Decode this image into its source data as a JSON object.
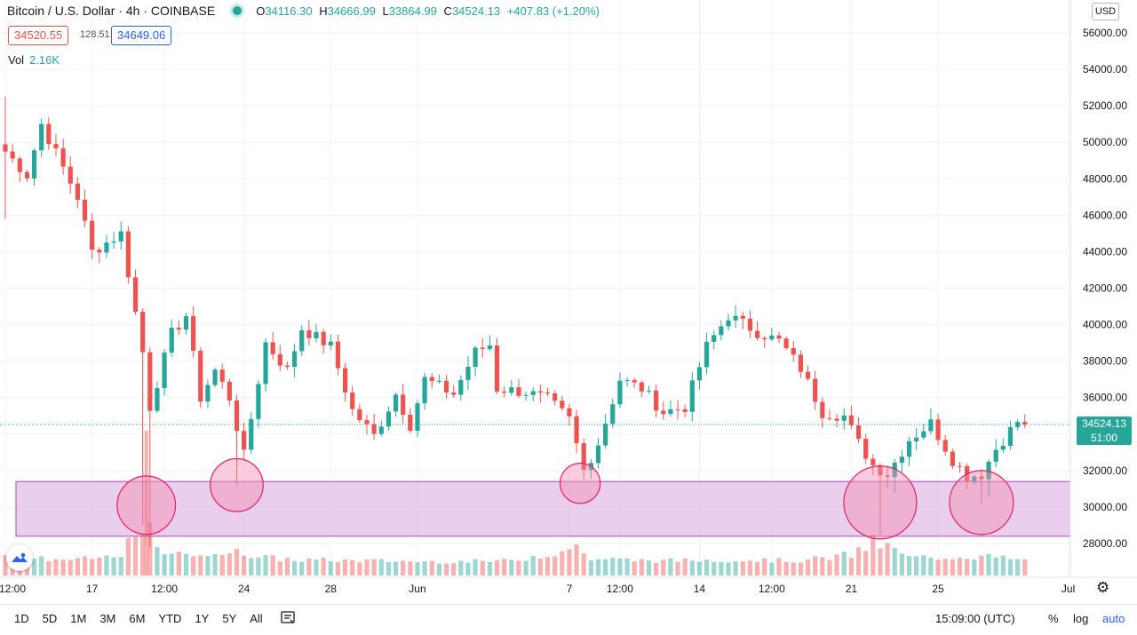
{
  "legend": {
    "symbol": "Bitcoin / U.S. Dollar · 4h · COINBASE",
    "open_label": "O",
    "open": "34116.30",
    "high_label": "H",
    "high": "34666.99",
    "low_label": "L",
    "low": "33864.99",
    "close_label": "C",
    "close": "34524.13",
    "change": "+407.83 (+1.20%)",
    "status_color": "#26a69a"
  },
  "quote": {
    "bid": "34520.55",
    "spread": "128.51",
    "ask": "34649.06"
  },
  "volume": {
    "label": "Vol",
    "value": "2.16K"
  },
  "currency": "USD",
  "last_price": {
    "price": "34524.13",
    "countdown": "51:00"
  },
  "bottom_bar": {
    "ranges": [
      "1D",
      "5D",
      "1M",
      "3M",
      "6M",
      "YTD",
      "1Y",
      "5Y",
      "All"
    ],
    "compare_icon": "compare-icon",
    "time": "15:09:00 (UTC)",
    "percent": "%",
    "log": "log",
    "auto": "auto"
  },
  "settings_icon": "gear-icon",
  "logo_icon": "tradingview-logo-icon",
  "chart_data": {
    "type": "candlestick",
    "interval": "4h",
    "up_color": "#26a69a",
    "down_color": "#ef5350",
    "zone_color": "#e1bee7",
    "highlight_color": "#f48fb1",
    "ylim": [
      26500,
      57500
    ],
    "y_ticks": [
      28000,
      30000,
      32000,
      34000,
      36000,
      38000,
      40000,
      42000,
      44000,
      46000,
      48000,
      50000,
      52000,
      54000,
      56000
    ],
    "y_tick_labels": [
      "28000.00",
      "30000.00",
      "32000.00",
      "34000.00",
      "36000.00",
      "38000.00",
      "40000.00",
      "42000.00",
      "44000.00",
      "46000.00",
      "48000.00",
      "50000.00",
      "52000.00",
      "54000.00",
      "56000.00"
    ],
    "x_ticks": [
      {
        "label": "12:00",
        "t": 0
      },
      {
        "label": "17",
        "t": 12
      },
      {
        "label": "12:00",
        "t": 22
      },
      {
        "label": "24",
        "t": 33
      },
      {
        "label": "28",
        "t": 45
      },
      {
        "label": "Jun",
        "t": 57
      },
      {
        "label": "7",
        "t": 78
      },
      {
        "label": "12:00",
        "t": 85
      },
      {
        "label": "14",
        "t": 96
      },
      {
        "label": "12:00",
        "t": 106
      },
      {
        "label": "21",
        "t": 117
      },
      {
        "label": "25",
        "t": 129
      },
      {
        "label": "Jul",
        "t": 147
      }
    ],
    "support_zone": {
      "from": 28400,
      "to": 31400
    },
    "highlights": [
      {
        "t": 19.5,
        "price": 30100,
        "r_price": 1600
      },
      {
        "t": 32,
        "price": 31200,
        "r_price": 1450
      },
      {
        "t": 79.5,
        "price": 31300,
        "r_price": 1100
      },
      {
        "t": 121,
        "price": 30250,
        "r_price": 2000
      },
      {
        "t": 135,
        "price": 30250,
        "r_price": 1750
      }
    ],
    "keypoints": [
      [
        0,
        49500
      ],
      [
        3,
        48200
      ],
      [
        5,
        51000
      ],
      [
        10,
        47000
      ],
      [
        12,
        44000
      ],
      [
        16,
        45000
      ],
      [
        19,
        38500
      ],
      [
        20,
        35500
      ],
      [
        23,
        39500
      ],
      [
        25,
        40500
      ],
      [
        27,
        36000
      ],
      [
        29,
        37500
      ],
      [
        31,
        36000
      ],
      [
        33,
        32800
      ],
      [
        36,
        39000
      ],
      [
        39,
        37500
      ],
      [
        41,
        39800
      ],
      [
        45,
        38800
      ],
      [
        48,
        35300
      ],
      [
        51,
        33900
      ],
      [
        54,
        36200
      ],
      [
        56,
        34500
      ],
      [
        58,
        37000
      ],
      [
        62,
        36200
      ],
      [
        65,
        38500
      ],
      [
        67,
        38900
      ],
      [
        68,
        36500
      ],
      [
        72,
        36300
      ],
      [
        75,
        35900
      ],
      [
        78,
        34800
      ],
      [
        80,
        32000
      ],
      [
        82,
        33500
      ],
      [
        85,
        37000
      ],
      [
        88,
        36500
      ],
      [
        91,
        35200
      ],
      [
        94,
        35500
      ],
      [
        97,
        38800
      ],
      [
        100,
        40500
      ],
      [
        104,
        39600
      ],
      [
        107,
        39100
      ],
      [
        110,
        37600
      ],
      [
        113,
        35200
      ],
      [
        116,
        35000
      ],
      [
        118,
        33500
      ],
      [
        120,
        32300
      ],
      [
        122,
        31800
      ],
      [
        125,
        33700
      ],
      [
        128,
        34600
      ],
      [
        131,
        32600
      ],
      [
        133,
        31700
      ],
      [
        135,
        31800
      ],
      [
        137,
        33200
      ],
      [
        140,
        34700
      ],
      [
        141,
        34524
      ]
    ],
    "volume_profile": [
      [
        0,
        0.5
      ],
      [
        5,
        0.4
      ],
      [
        10,
        0.35
      ],
      [
        15,
        0.5
      ],
      [
        19,
        1.6
      ],
      [
        20,
        2.1
      ],
      [
        21,
        1.1
      ],
      [
        23,
        0.5
      ],
      [
        26,
        0.8
      ],
      [
        30,
        0.45
      ],
      [
        32,
        1.3
      ],
      [
        34,
        0.5
      ],
      [
        40,
        0.35
      ],
      [
        50,
        0.3
      ],
      [
        60,
        0.25
      ],
      [
        70,
        0.3
      ],
      [
        79,
        1.0
      ],
      [
        81,
        0.4
      ],
      [
        90,
        0.3
      ],
      [
        100,
        0.35
      ],
      [
        110,
        0.3
      ],
      [
        117,
        0.6
      ],
      [
        120,
        1.2
      ],
      [
        122,
        1.0
      ],
      [
        125,
        0.45
      ],
      [
        130,
        0.5
      ],
      [
        135,
        0.55
      ],
      [
        141,
        0.3
      ]
    ]
  }
}
